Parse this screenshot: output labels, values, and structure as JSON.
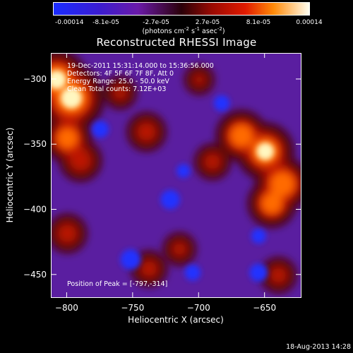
{
  "colorbar": {
    "ticks": [
      "-0.00014",
      "-8.1e-05",
      "-2.7e-05",
      "2.7e-05",
      "8.1e-05",
      "0.00014"
    ],
    "units_prefix": "(photons cm",
    "units_sup1": "-2",
    "units_mid1": " s",
    "units_sup2": "-1",
    "units_mid2": " asec",
    "units_sup3": "-2",
    "units_suffix": ")"
  },
  "chart_data": {
    "type": "heatmap",
    "title": "Reconstructed RHESSI Image",
    "xlabel": "Heliocentric X (arcsec)",
    "ylabel": "Heliocentric Y (arcsec)",
    "xlim": [
      -812,
      -622
    ],
    "ylim": [
      -468,
      -280
    ],
    "x_ticks": [
      -800,
      -750,
      -700,
      -650
    ],
    "y_ticks": [
      -300,
      -350,
      -400,
      -450
    ],
    "x_tick_labels": [
      "−800",
      "−750",
      "−700",
      "−650"
    ],
    "y_tick_labels": [
      "−300",
      "−350",
      "−400",
      "−450"
    ],
    "value_range": [
      -0.00014,
      0.00014
    ],
    "peak_position": [
      -797,
      -314
    ],
    "hot_spots": [
      {
        "x": -797,
        "y": -314,
        "value": 0.00014
      },
      {
        "x": -808,
        "y": -300,
        "value": 0.00012
      },
      {
        "x": -800,
        "y": -345,
        "value": 8e-05
      },
      {
        "x": -790,
        "y": -362,
        "value": 6e-05
      },
      {
        "x": -650,
        "y": -355,
        "value": 0.00011
      },
      {
        "x": -637,
        "y": -380,
        "value": 0.0001
      },
      {
        "x": -668,
        "y": -343,
        "value": 9e-05
      },
      {
        "x": -645,
        "y": -395,
        "value": 8e-05
      },
      {
        "x": -690,
        "y": -363,
        "value": 4e-05
      },
      {
        "x": -800,
        "y": -418,
        "value": 5e-05
      },
      {
        "x": -740,
        "y": -340,
        "value": 5e-05
      },
      {
        "x": -760,
        "y": -310,
        "value": 3e-05
      },
      {
        "x": -700,
        "y": -300,
        "value": 2e-05
      },
      {
        "x": -738,
        "y": -445,
        "value": 4e-05
      },
      {
        "x": -640,
        "y": -450,
        "value": 4e-05
      },
      {
        "x": -715,
        "y": -430,
        "value": 3e-05
      }
    ],
    "cold_spots": [
      {
        "x": -752,
        "y": -438,
        "value": -0.00012
      },
      {
        "x": -722,
        "y": -392,
        "value": -0.00011
      },
      {
        "x": -655,
        "y": -448,
        "value": -0.0001
      },
      {
        "x": -705,
        "y": -448,
        "value": -8e-05
      },
      {
        "x": -775,
        "y": -338,
        "value": -9e-05
      },
      {
        "x": -683,
        "y": -318,
        "value": -8e-05
      },
      {
        "x": -655,
        "y": -420,
        "value": -7e-05
      },
      {
        "x": -712,
        "y": -370,
        "value": -6e-05
      }
    ]
  },
  "annotations": {
    "time_range": "19-Dec-2011 15:31:14.000 to 15:36:56.000",
    "detectors": "Detectors: 4F 5F 6F 7F 8F, Att 0",
    "energy_range": "Energy Range: 25.0 - 50.0 keV",
    "method_counts": "Clean     Total counts: 7.12E+03",
    "peak_position": "Position of Peak = [-797,-314]"
  },
  "footer": {
    "timestamp": "18-Aug-2013 14:28"
  }
}
